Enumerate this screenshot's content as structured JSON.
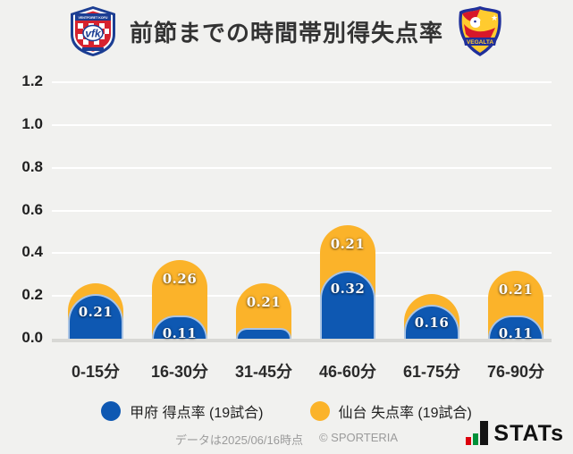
{
  "header": {
    "title": "前節までの時間帯別得失点率",
    "left_logo": "ventforet-kofu-crest",
    "left_logo_banner": "VENTFORET KOFU",
    "left_logo_monogram": "vfk",
    "right_logo": "vegalta-sendai-crest",
    "right_logo_banner": "VEGALTA"
  },
  "chart_data": {
    "type": "bar",
    "stacked": true,
    "title": "前節までの時間帯別得失点率",
    "categories": [
      "0-15分",
      "16-30分",
      "31-45分",
      "46-60分",
      "61-75分",
      "76-90分"
    ],
    "series": [
      {
        "name": "甲府 得点率 (19試合)",
        "color": "#0E58B2",
        "values": [
          0.21,
          0.11,
          0.05,
          0.32,
          0.16,
          0.11
        ],
        "data_labels": [
          "0.21",
          "0.11",
          "",
          "0.32",
          "0.16",
          "0.11"
        ]
      },
      {
        "name": "仙台 失点率 (19試合)",
        "color": "#FBB32A",
        "values": [
          0.05,
          0.26,
          0.21,
          0.21,
          0.05,
          0.21
        ],
        "data_labels": [
          "",
          "0.26",
          "0.21",
          "0.21",
          "",
          "0.21"
        ]
      }
    ],
    "ylim": [
      0,
      1.2
    ],
    "yticks": [
      0,
      0.2,
      0.4,
      0.6,
      0.8,
      1.0,
      1.2
    ],
    "ytick_labels": [
      "0.0",
      "0.2",
      "0.4",
      "0.6",
      "0.8",
      "1.0",
      "1.2"
    ],
    "grid": true,
    "legend_position": "bottom"
  },
  "footer": {
    "note": "データは2025/06/16時点",
    "copyright": "© SPORTERIA",
    "brand": "STATs",
    "brand_icon": "bar-chart-icon"
  },
  "colors": {
    "background": "#F1F1EF",
    "gridline": "#FFFFFF",
    "baseline": "#D8D8D5",
    "kofu_blue": "#0E58B2",
    "sendai_yellow": "#FBB32A"
  }
}
